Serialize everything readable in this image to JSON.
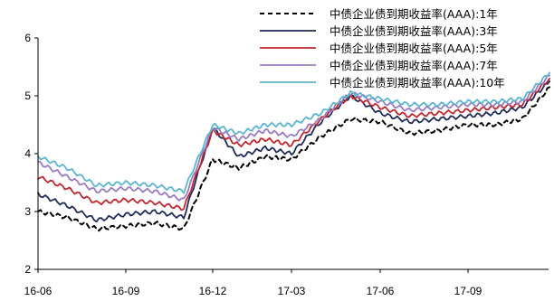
{
  "chart_data": {
    "type": "line",
    "title": "",
    "xlabel": "",
    "ylabel": "",
    "ylim": [
      2,
      6
    ],
    "y_ticks": [
      2,
      3,
      4,
      5,
      6
    ],
    "x_ticks": [
      "16-06",
      "16-09",
      "16-12",
      "17-03",
      "17-06",
      "17-09"
    ],
    "grid": false,
    "legend_position": "top-right",
    "x": [
      "16-06",
      "16-07",
      "16-08",
      "16-09",
      "16-10",
      "16-11",
      "16-12",
      "17-01",
      "17-02",
      "17-03",
      "17-04",
      "17-05",
      "17-06",
      "17-07",
      "17-08",
      "17-09",
      "17-10",
      "17-11",
      "17-12"
    ],
    "series": [
      {
        "name": "中债企业债到期收益率(AAA):1年",
        "color": "#000000",
        "dash": "dashed",
        "values": [
          3.0,
          2.9,
          2.7,
          2.75,
          2.8,
          2.7,
          3.9,
          3.75,
          3.95,
          3.9,
          4.3,
          4.6,
          4.55,
          4.35,
          4.4,
          4.5,
          4.5,
          4.6,
          5.15
        ]
      },
      {
        "name": "中债企业债到期收益率(AAA):3年",
        "color": "#1f2c5c",
        "dash": "solid",
        "values": [
          3.3,
          3.1,
          2.85,
          2.95,
          3.0,
          2.9,
          4.45,
          3.95,
          4.1,
          4.0,
          4.55,
          5.0,
          4.7,
          4.55,
          4.6,
          4.65,
          4.7,
          4.8,
          5.25
        ]
      },
      {
        "name": "中债企业债到期收益率(AAA):5年",
        "color": "#c1272d",
        "dash": "solid",
        "values": [
          3.6,
          3.4,
          3.15,
          3.2,
          3.15,
          3.05,
          4.4,
          4.15,
          4.25,
          4.15,
          4.6,
          5.0,
          4.8,
          4.65,
          4.7,
          4.75,
          4.8,
          4.85,
          5.3
        ]
      },
      {
        "name": "中债企业债到期收益率(AAA):7年",
        "color": "#9b7bc2",
        "dash": "solid",
        "values": [
          3.85,
          3.6,
          3.35,
          3.4,
          3.35,
          3.2,
          4.45,
          4.25,
          4.4,
          4.3,
          4.6,
          5.05,
          4.9,
          4.75,
          4.8,
          4.85,
          4.85,
          4.9,
          5.35
        ]
      },
      {
        "name": "中债企业债到期收益率(AAA):10年",
        "color": "#5bb5d1",
        "dash": "solid",
        "values": [
          3.95,
          3.75,
          3.45,
          3.5,
          3.45,
          3.35,
          4.5,
          4.35,
          4.5,
          4.5,
          4.7,
          5.05,
          4.95,
          4.85,
          4.85,
          4.9,
          4.9,
          4.95,
          5.4
        ]
      }
    ]
  }
}
